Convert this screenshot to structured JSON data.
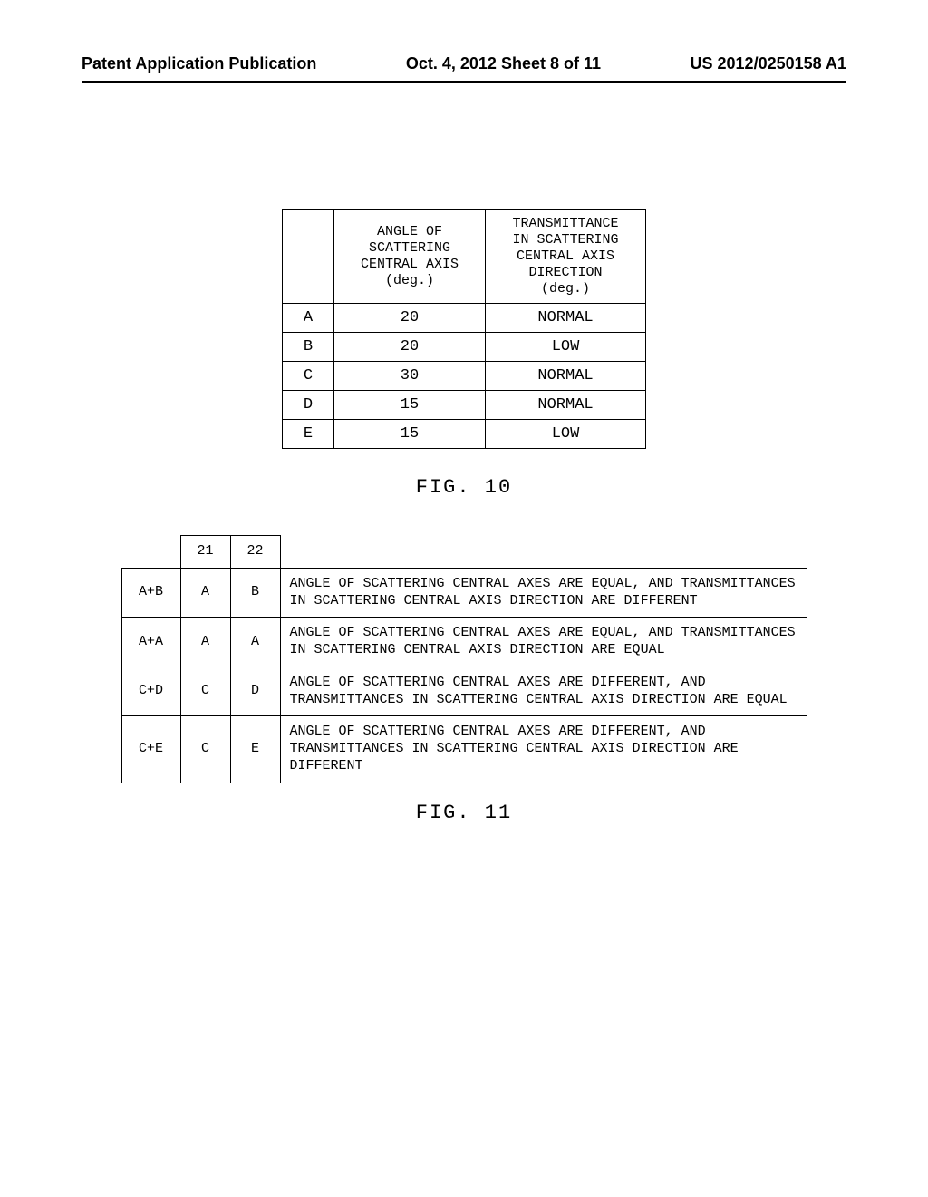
{
  "header": {
    "left": "Patent Application Publication",
    "center": "Oct. 4, 2012   Sheet 8 of 11",
    "right": "US 2012/0250158 A1"
  },
  "table1": {
    "columns": {
      "blank": "",
      "angle": "ANGLE OF\nSCATTERING\nCENTRAL AXIS\n(deg.)",
      "trans": "TRANSMITTANCE\nIN SCATTERING\nCENTRAL AXIS\nDIRECTION\n(deg.)"
    },
    "rows": [
      {
        "label": "A",
        "angle": "20",
        "trans": "NORMAL"
      },
      {
        "label": "B",
        "angle": "20",
        "trans": "LOW"
      },
      {
        "label": "C",
        "angle": "30",
        "trans": "NORMAL"
      },
      {
        "label": "D",
        "angle": "15",
        "trans": "NORMAL"
      },
      {
        "label": "E",
        "angle": "15",
        "trans": "LOW"
      }
    ]
  },
  "fig10": "FIG. 10",
  "table2": {
    "head": {
      "c21": "21",
      "c22": "22"
    },
    "rows": [
      {
        "label": "A+B",
        "c21": "A",
        "c22": "B",
        "desc": "ANGLE OF SCATTERING CENTRAL AXES ARE EQUAL, AND TRANSMITTANCES IN SCATTERING CENTRAL AXIS DIRECTION ARE DIFFERENT"
      },
      {
        "label": "A+A",
        "c21": "A",
        "c22": "A",
        "desc": "ANGLE OF SCATTERING CENTRAL AXES ARE EQUAL, AND TRANSMITTANCES IN SCATTERING CENTRAL AXIS DIRECTION ARE EQUAL"
      },
      {
        "label": "C+D",
        "c21": "C",
        "c22": "D",
        "desc": "ANGLE OF SCATTERING CENTRAL AXES ARE DIFFERENT, AND TRANSMITTANCES IN SCATTERING CENTRAL AXIS DIRECTION ARE EQUAL"
      },
      {
        "label": "C+E",
        "c21": "C",
        "c22": "E",
        "desc": "ANGLE OF SCATTERING CENTRAL AXES ARE DIFFERENT, AND TRANSMITTANCES IN SCATTERING CENTRAL AXIS DIRECTION ARE DIFFERENT"
      }
    ]
  },
  "fig11": "FIG. 11"
}
